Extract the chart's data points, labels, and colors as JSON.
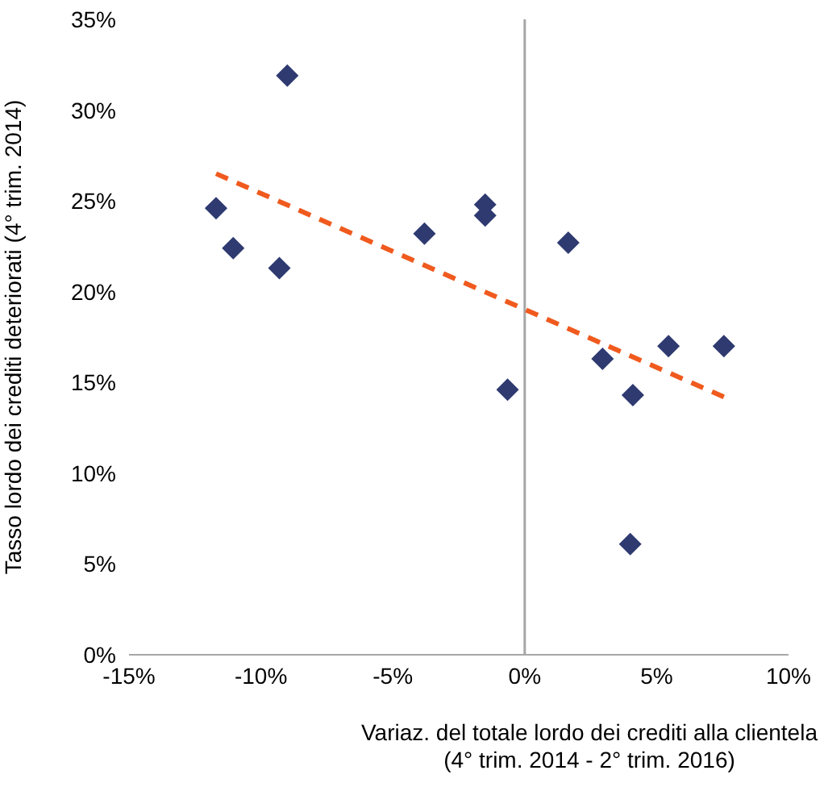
{
  "chart_data": {
    "type": "scatter",
    "xlabel": "Variaz. del totale lordo dei crediti alla clientela\n(4° trim. 2014 - 2° trim. 2016)",
    "ylabel": "Tasso lordo dei crediti deteriorati (4° trim. 2014)",
    "xlim": [
      -15,
      10
    ],
    "xticks": [
      {
        "value": -15,
        "label": "-15%"
      },
      {
        "value": -10,
        "label": "-10%"
      },
      {
        "value": -5,
        "label": "-5%"
      },
      {
        "value": 0,
        "label": "0%"
      },
      {
        "value": 5,
        "label": "5%"
      },
      {
        "value": 10,
        "label": "10%"
      }
    ],
    "ylim": [
      0,
      35
    ],
    "yticks": [
      {
        "value": 0,
        "label": "0%"
      },
      {
        "value": 5,
        "label": "5%"
      },
      {
        "value": 10,
        "label": "10%"
      },
      {
        "value": 15,
        "label": "15%"
      },
      {
        "value": 20,
        "label": "20%"
      },
      {
        "value": 25,
        "label": "25%"
      },
      {
        "value": 30,
        "label": "30%"
      },
      {
        "value": 35,
        "label": "35%"
      }
    ],
    "grid": false,
    "ref_lines": [
      {
        "axis": "x",
        "value": 0,
        "color": "#a6a6a6"
      }
    ],
    "series": [
      {
        "marker": "diamond",
        "color": "#2e3a70",
        "x": [
          -11.7,
          -11.05,
          -9.3,
          -9.0,
          -3.8,
          -1.5,
          -1.5,
          -0.65,
          1.65,
          2.95,
          4.1,
          4.0,
          5.45,
          7.55
        ],
        "values": [
          24.6,
          22.4,
          21.3,
          31.9,
          23.2,
          24.8,
          24.2,
          14.6,
          22.7,
          16.3,
          14.3,
          6.1,
          17.0,
          17.0
        ]
      },
      {
        "type": "line",
        "line_style": "dashed",
        "color": "#f05a1e",
        "x": [
          -11.7,
          7.55
        ],
        "values": [
          26.5,
          14.2
        ]
      }
    ]
  }
}
